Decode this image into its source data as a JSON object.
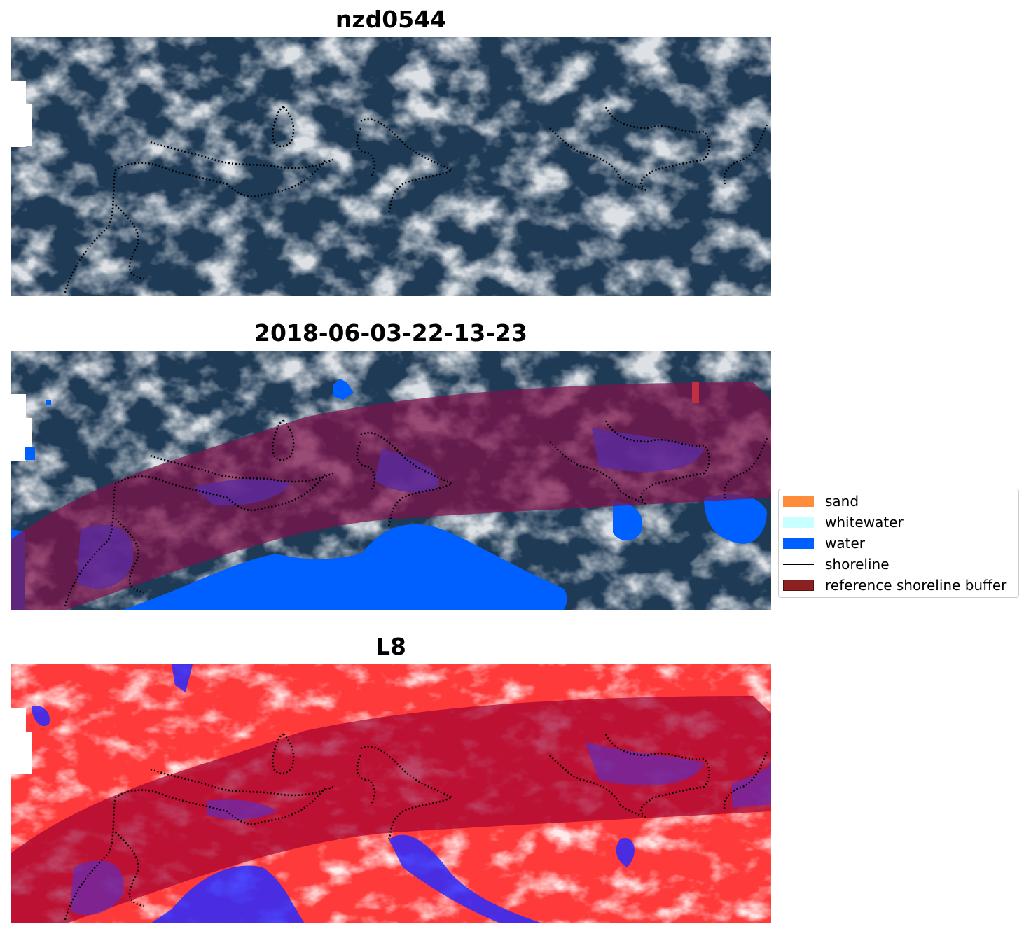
{
  "panels": [
    {
      "title": "nzd0544"
    },
    {
      "title": "2018-06-03-22-13-23"
    },
    {
      "title": "L8"
    }
  ],
  "legend": {
    "items": [
      {
        "label": "sand",
        "color": "#ff8c3a"
      },
      {
        "label": "whitewater",
        "color": "#c8ffff"
      },
      {
        "label": "water",
        "color": "#0060ff"
      },
      {
        "label": "shoreline",
        "color": "#000000"
      },
      {
        "label": "reference shoreline buffer",
        "color": "#8b2020"
      }
    ]
  },
  "colors": {
    "imagery_dark": "#1f3a55",
    "imagery_light": "#c9d6e2",
    "buffer": "#80104a",
    "index_positive": "#ff2020",
    "index_negative": "#2020ff"
  }
}
